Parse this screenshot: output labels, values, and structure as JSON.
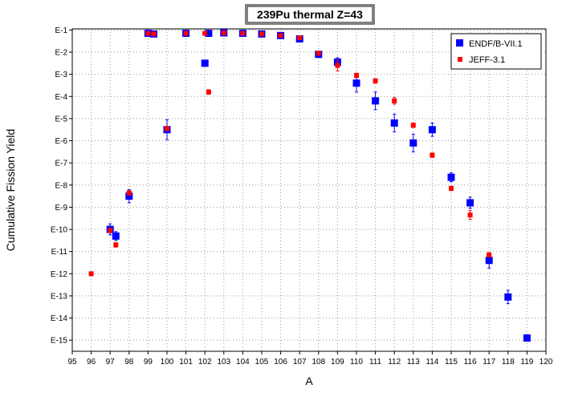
{
  "chart_data": {
    "type": "scatter",
    "title": "239Pu thermal Z=43",
    "xlabel": "A",
    "ylabel": "Cumulative Fission Yield",
    "xlim": [
      95,
      120
    ],
    "ylim_exp": [
      -15.5,
      -0.95
    ],
    "yscale": "log",
    "grid": true,
    "legend_position": "top-right",
    "x_ticks": [
      "95",
      "96",
      "97",
      "98",
      "99",
      "100",
      "101",
      "102",
      "103",
      "104",
      "105",
      "106",
      "107",
      "108",
      "109",
      "110",
      "111",
      "112",
      "113",
      "114",
      "115",
      "116",
      "117",
      "118",
      "119",
      "120"
    ],
    "y_ticks": [
      {
        "label": "E-1",
        "exp": -1
      },
      {
        "label": "E-2",
        "exp": -2
      },
      {
        "label": "E-3",
        "exp": -3
      },
      {
        "label": "E-4",
        "exp": -4
      },
      {
        "label": "E-5",
        "exp": -5
      },
      {
        "label": "E-6",
        "exp": -6
      },
      {
        "label": "E-7",
        "exp": -7
      },
      {
        "label": "E-8",
        "exp": -8
      },
      {
        "label": "E-9",
        "exp": -9
      },
      {
        "label": "E-10",
        "exp": -10
      },
      {
        "label": "E-11",
        "exp": -11
      },
      {
        "label": "E-12",
        "exp": -12
      },
      {
        "label": "E-13",
        "exp": -13
      },
      {
        "label": "E-14",
        "exp": -14
      },
      {
        "label": "E-15",
        "exp": -15
      }
    ],
    "series": [
      {
        "name": "ENDF/B-VII.1",
        "color": "#0000ff",
        "marker": "square-large",
        "points": [
          {
            "x": 97,
            "exp": -10.0,
            "err": 0.25
          },
          {
            "x": 97.3,
            "exp": -10.3,
            "err": 0.2
          },
          {
            "x": 98,
            "exp": -8.5,
            "err": 0.3
          },
          {
            "x": 99,
            "exp": -1.15,
            "err": 0
          },
          {
            "x": 99.3,
            "exp": -1.18,
            "err": 0
          },
          {
            "x": 100,
            "exp": -5.5,
            "err": 0.45
          },
          {
            "x": 101,
            "exp": -1.15,
            "err": 0
          },
          {
            "x": 102,
            "exp": -2.5,
            "err": 0
          },
          {
            "x": 102.2,
            "exp": -1.15,
            "err": 0
          },
          {
            "x": 103,
            "exp": -1.13,
            "err": 0
          },
          {
            "x": 104,
            "exp": -1.15,
            "err": 0
          },
          {
            "x": 105,
            "exp": -1.18,
            "err": 0
          },
          {
            "x": 106,
            "exp": -1.25,
            "err": 0
          },
          {
            "x": 107,
            "exp": -1.4,
            "err": 0
          },
          {
            "x": 108,
            "exp": -2.1,
            "err": 0
          },
          {
            "x": 109,
            "exp": -2.45,
            "err": 0.2
          },
          {
            "x": 110,
            "exp": -3.4,
            "err": 0.4
          },
          {
            "x": 111,
            "exp": -4.2,
            "err": 0.4
          },
          {
            "x": 112,
            "exp": -5.2,
            "err": 0.4
          },
          {
            "x": 113,
            "exp": -6.1,
            "err": 0.4
          },
          {
            "x": 114,
            "exp": -5.5,
            "err": 0.3
          },
          {
            "x": 115,
            "exp": -7.65,
            "err": 0.2
          },
          {
            "x": 116,
            "exp": -8.8,
            "err": 0.25
          },
          {
            "x": 117,
            "exp": -11.4,
            "err": 0.35
          },
          {
            "x": 118,
            "exp": -13.05,
            "err": 0.3
          },
          {
            "x": 119,
            "exp": -14.9,
            "err": 0.1
          }
        ]
      },
      {
        "name": "JEFF-3.1",
        "color": "#ff0000",
        "marker": "square-small",
        "points": [
          {
            "x": 96,
            "exp": -12.0,
            "err": 0
          },
          {
            "x": 97,
            "exp": -10.05,
            "err": 0.1
          },
          {
            "x": 97.3,
            "exp": -10.7,
            "err": 0.1
          },
          {
            "x": 98,
            "exp": -8.35,
            "err": 0.1
          },
          {
            "x": 99,
            "exp": -1.15,
            "err": 0
          },
          {
            "x": 99.3,
            "exp": -1.18,
            "err": 0
          },
          {
            "x": 100,
            "exp": -5.45,
            "err": 0.1
          },
          {
            "x": 101,
            "exp": -1.15,
            "err": 0
          },
          {
            "x": 102,
            "exp": -1.15,
            "err": 0
          },
          {
            "x": 102.2,
            "exp": -3.8,
            "err": 0.1
          },
          {
            "x": 103,
            "exp": -1.13,
            "err": 0
          },
          {
            "x": 104,
            "exp": -1.15,
            "err": 0
          },
          {
            "x": 105,
            "exp": -1.18,
            "err": 0
          },
          {
            "x": 106,
            "exp": -1.25,
            "err": 0
          },
          {
            "x": 107,
            "exp": -1.35,
            "err": 0
          },
          {
            "x": 108,
            "exp": -2.05,
            "err": 0
          },
          {
            "x": 109,
            "exp": -2.6,
            "err": 0.25
          },
          {
            "x": 110,
            "exp": -3.05,
            "err": 0.1
          },
          {
            "x": 111,
            "exp": -3.3,
            "err": 0.1
          },
          {
            "x": 112,
            "exp": -4.2,
            "err": 0.15
          },
          {
            "x": 113,
            "exp": -5.3,
            "err": 0.1
          },
          {
            "x": 114,
            "exp": -6.65,
            "err": 0.1
          },
          {
            "x": 115,
            "exp": -8.15,
            "err": 0.1
          },
          {
            "x": 116,
            "exp": -9.35,
            "err": 0.2
          },
          {
            "x": 117,
            "exp": -11.15,
            "err": 0.1
          }
        ]
      }
    ]
  }
}
